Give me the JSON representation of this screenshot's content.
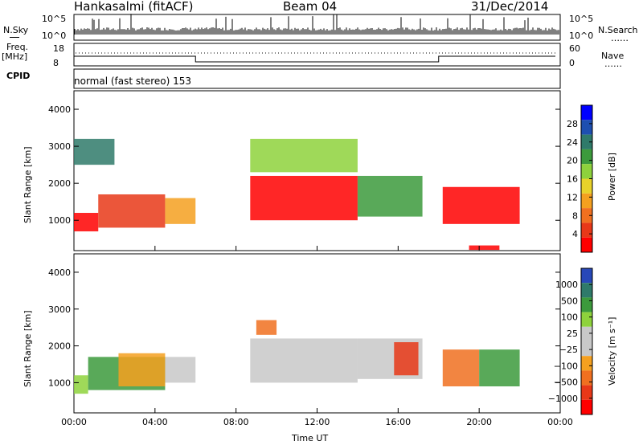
{
  "header": {
    "station": "Hankasalmi (fitACF)",
    "beam": "Beam 04",
    "date": "31/Dec/2014"
  },
  "strip_labels": {
    "nsky": "N.Sky",
    "nsearch": "N.Search",
    "nsearch_marker": "……",
    "freq": "Freq.",
    "freq_unit": "[MHz]",
    "nave": "Nave",
    "nave_marker": "……",
    "cpid": "CPID",
    "mode": "normal (fast stereo) 153"
  },
  "strip_ticks": {
    "noise_left": [
      "10^5",
      "10^0"
    ],
    "noise_right": [
      "10^5",
      "10^0"
    ],
    "freq_left": [
      "18",
      "8"
    ],
    "nave_right": [
      "60",
      "0"
    ]
  },
  "chart_data": [
    {
      "type": "heatmap",
      "name": "power",
      "ylabel": "Slant Range [km]",
      "ylim": [
        180,
        4500
      ],
      "yticks": [
        1000,
        2000,
        3000,
        4000
      ],
      "colorbar_label": "Power [dB]",
      "colorbar_ticks": [
        "4",
        "8",
        "12",
        "16",
        "20",
        "24",
        "28"
      ],
      "colorbar_colors": [
        "#0000ff",
        "#1e4fb0",
        "#2f7a6a",
        "#3c9a3c",
        "#8ed23c",
        "#e8d22a",
        "#f4a020",
        "#f07020",
        "#e83818",
        "#ff0000"
      ],
      "echo_regions": [
        {
          "t0": 0.0,
          "t1": 1.2,
          "r0": 700,
          "r1": 1200,
          "level": 9
        },
        {
          "t0": 1.2,
          "t1": 4.5,
          "r0": 800,
          "r1": 1700,
          "level": 8
        },
        {
          "t0": 4.5,
          "t1": 6.0,
          "r0": 900,
          "r1": 1600,
          "level": 6
        },
        {
          "t0": 0.0,
          "t1": 2.0,
          "r0": 2500,
          "r1": 3200,
          "level": 2
        },
        {
          "t0": 8.7,
          "t1": 14.0,
          "r0": 1000,
          "r1": 2200,
          "level": 9
        },
        {
          "t0": 14.0,
          "t1": 17.2,
          "r0": 1100,
          "r1": 2200,
          "level": 3
        },
        {
          "t0": 8.7,
          "t1": 14.0,
          "r0": 2300,
          "r1": 3200,
          "level": 4
        },
        {
          "t0": 18.2,
          "t1": 22.0,
          "r0": 900,
          "r1": 1900,
          "level": 9
        },
        {
          "t0": 19.5,
          "t1": 21.0,
          "r0": 200,
          "r1": 320,
          "level": 9
        }
      ]
    },
    {
      "type": "heatmap",
      "name": "velocity",
      "ylabel": "Slant Range [km]",
      "xlabel": "Time UT",
      "ylim": [
        180,
        4500
      ],
      "yticks": [
        1000,
        2000,
        3000,
        4000
      ],
      "x": [
        "00:00",
        "04:00",
        "08:00",
        "12:00",
        "16:00",
        "20:00",
        "00:00"
      ],
      "xlim": [
        0,
        24
      ],
      "colorbar_label": "Velocity [m s⁻¹]",
      "colorbar_ticks": [
        "1000",
        "500",
        "100",
        "25",
        "−25",
        "−100",
        "−500",
        "−1000"
      ],
      "colorbar_colors": [
        "#2848b8",
        "#2f7a6a",
        "#3c9a3c",
        "#8ed23c",
        "#c8c8c8",
        "#c8c8c8",
        "#f4a020",
        "#f07020",
        "#e83818",
        "#ff0000"
      ],
      "echo_regions": [
        {
          "t0": 0.0,
          "t1": 0.7,
          "r0": 700,
          "r1": 1200,
          "level": 3
        },
        {
          "t0": 0.7,
          "t1": 4.5,
          "r0": 800,
          "r1": 1700,
          "level": 2
        },
        {
          "t0": 2.2,
          "t1": 4.5,
          "r0": 900,
          "r1": 1800,
          "level": 6
        },
        {
          "t0": 4.5,
          "t1": 6.0,
          "r0": 1000,
          "r1": 1700,
          "level": 5
        },
        {
          "t0": 8.7,
          "t1": 14.0,
          "r0": 1000,
          "r1": 2200,
          "level": 4
        },
        {
          "t0": 9.0,
          "t1": 10.0,
          "r0": 2300,
          "r1": 2700,
          "level": 7
        },
        {
          "t0": 14.0,
          "t1": 17.2,
          "r0": 1100,
          "r1": 2200,
          "level": 4
        },
        {
          "t0": 15.8,
          "t1": 17.0,
          "r0": 1200,
          "r1": 2100,
          "level": 8
        },
        {
          "t0": 18.2,
          "t1": 20.0,
          "r0": 900,
          "r1": 1900,
          "level": 7
        },
        {
          "t0": 20.0,
          "t1": 22.0,
          "r0": 900,
          "r1": 1900,
          "level": 2
        }
      ]
    }
  ]
}
